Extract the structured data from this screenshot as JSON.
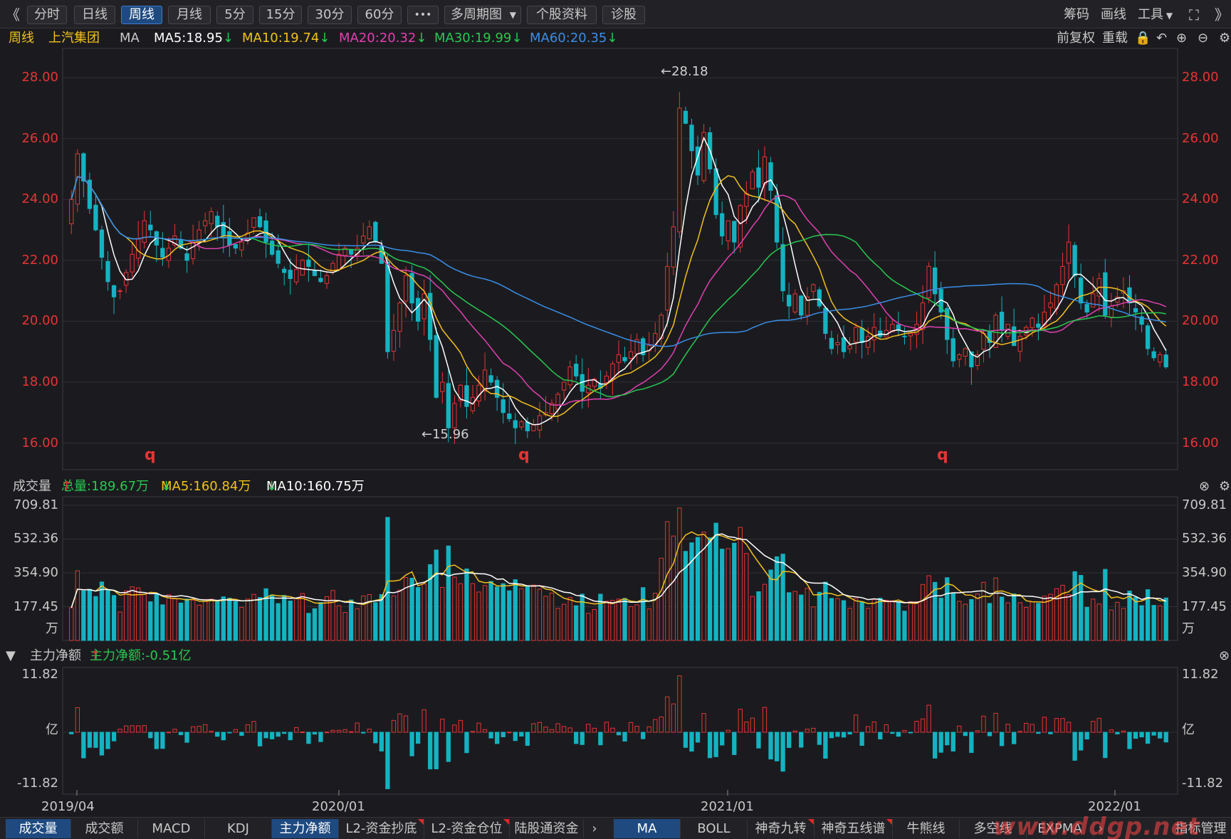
{
  "toolbar": {
    "collapse": "《",
    "periods": [
      "分时",
      "日线",
      "周线",
      "月线",
      "5分",
      "15分",
      "30分",
      "60分"
    ],
    "more": "•••",
    "multi": "多周期图",
    "profile": "个股资料",
    "diagnose": "诊股",
    "right": [
      "筹码",
      "画线",
      "工具"
    ],
    "fullscreen": "⛶",
    "expand": "》"
  },
  "header": {
    "period": "周线",
    "stock": "上汽集团",
    "ind": "MA",
    "ma5": "MA5:18.95",
    "ma10": "MA10:19.74",
    "ma20": "MA20:20.32",
    "ma30": "MA30:19.99",
    "ma60": "MA60:20.35",
    "arrow_down": "↓",
    "fq": "前复权",
    "reload": "重载"
  },
  "price_axis": [
    "28.00",
    "26.00",
    "24.00",
    "22.00",
    "20.00",
    "18.00",
    "16.00"
  ],
  "annotations": {
    "high": "←28.18",
    "low": "←15.96",
    "q": "q"
  },
  "volume": {
    "title": "成交量",
    "total": "总量:189.67万",
    "ma5": "MA5:160.84万",
    "ma10": "MA10:160.75万",
    "arrow_up": "↑",
    "arrow_down": "↓",
    "axis": [
      "709.81",
      "532.36",
      "354.90",
      "177.45"
    ],
    "unit": "万"
  },
  "flow": {
    "title": "主力净额",
    "value": "主力净额:-0.51亿",
    "arrow_up": "↑",
    "axis_top": "11.82",
    "axis_mid": "亿",
    "axis_bot": "-11.82"
  },
  "x_axis": [
    "2019/04",
    "2020/01",
    "2021/01",
    "2022/01"
  ],
  "bottom_tabs_left": [
    "成交量",
    "成交额",
    "MACD",
    "KDJ",
    "主力净额",
    "L2-资金抄底",
    "L2-资金仓位",
    "陆股通资金"
  ],
  "bottom_tabs_right": [
    "MA",
    "BOLL",
    "神奇九转",
    "神奇五线谱",
    "牛熊线",
    "多空线",
    "EXPMA",
    "指标管理"
  ],
  "watermark": "www.ddgp.net",
  "colors": {
    "up": "#e63434",
    "down": "#14b3c1",
    "ma5": "#ffffff",
    "ma10": "#f2c01e",
    "ma20": "#e040b0",
    "ma30": "#28c850",
    "ma60": "#3a8ee8",
    "accent": "#1e4a80"
  },
  "chart_data": {
    "type": "candlestick",
    "period": "weekly",
    "ylim": [
      15.5,
      28.4
    ],
    "volume_ylim": [
      0,
      709.81
    ],
    "flow_ylim": [
      -11.82,
      11.82
    ],
    "high_label": 28.18,
    "low_label": 15.96,
    "x_ticks": [
      "2019/04",
      "2020/01",
      "2021/01",
      "2022/01"
    ],
    "ohlc_anchor_close": [
      24.0,
      25.5,
      24.6,
      23.7,
      23.0,
      22.1,
      21.3,
      20.8,
      21.0,
      21.6,
      22.2,
      22.7,
      23.3,
      23.0,
      22.5,
      22.1,
      22.4,
      22.8,
      22.4,
      22.0,
      22.6,
      23.0,
      23.3,
      23.6,
      23.1,
      22.8,
      22.5,
      22.4,
      22.6,
      22.9,
      23.4,
      23.1,
      22.6,
      22.2,
      21.9,
      21.6,
      21.4,
      21.7,
      22.0,
      21.8,
      21.5,
      21.3,
      21.5,
      21.9,
      22.2,
      22.4,
      22.2,
      22.4,
      22.8,
      23.1,
      22.6,
      21.9,
      19.0,
      19.7,
      20.6,
      21.5,
      20.6,
      20.0,
      20.9,
      19.4,
      17.5,
      18.0,
      16.5,
      17.3,
      17.9,
      17.2,
      17.5,
      17.9,
      18.4,
      18.0,
      17.5,
      17.0,
      16.8,
      16.5,
      16.7,
      16.4,
      16.6,
      16.9,
      17.0,
      17.3,
      17.6,
      18.0,
      18.5,
      18.2,
      17.7,
      17.9,
      18.1,
      17.8,
      18.2,
      18.6,
      18.9,
      18.7,
      19.0,
      19.4,
      18.9,
      19.2,
      19.6,
      20.2,
      21.8,
      23.1,
      27.0,
      26.5,
      25.6,
      24.8,
      26.2,
      25.0,
      23.5,
      22.8,
      23.3,
      22.6,
      23.8,
      24.2,
      24.9,
      24.4,
      25.4,
      24.3,
      22.6,
      21.0,
      20.5,
      20.9,
      20.2,
      20.8,
      21.2,
      20.5,
      19.6,
      19.1,
      19.3,
      19.0,
      19.2,
      19.8,
      19.3,
      19.5,
      19.8,
      19.5,
      19.7,
      19.9,
      19.7,
      19.5,
      19.6,
      19.9,
      20.6,
      21.8,
      20.9,
      20.3,
      19.4,
      18.7,
      18.9,
      19.1,
      18.5,
      18.9,
      19.6,
      19.3,
      20.2,
      19.7,
      19.9,
      19.2,
      19.5,
      19.8,
      20.1,
      19.8,
      20.3,
      20.6,
      21.2,
      21.8,
      22.6,
      21.5,
      20.6,
      20.3,
      20.9,
      21.4,
      20.2,
      20.5,
      20.8,
      21.0,
      20.6,
      20.3,
      19.9,
      19.1,
      18.8,
      18.9,
      18.5
    ],
    "volume_shape": "weekly bars scaled 0–709.81 万, peak near 2021/01",
    "flow_shape": "weekly net flow bars in 亿, range ±11.82"
  }
}
